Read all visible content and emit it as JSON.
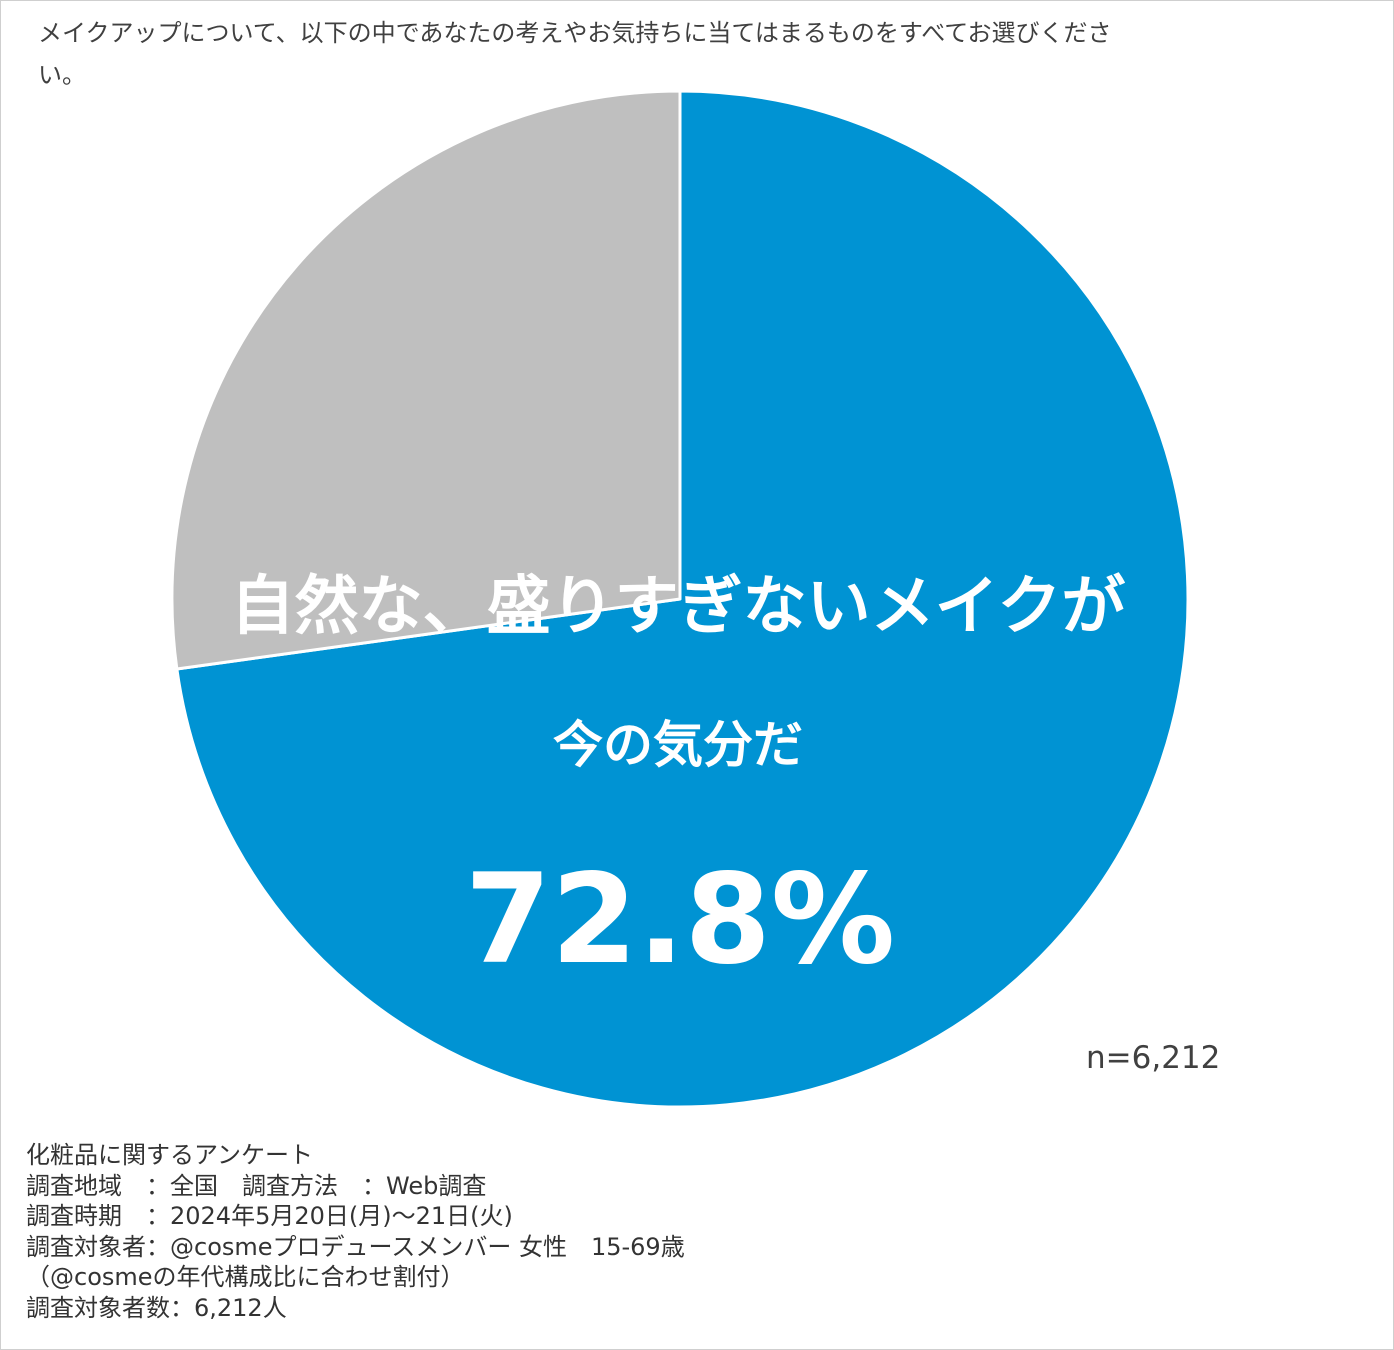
{
  "question": "メイクアップについて、以下の中であなたの考えやお気持ちに当てはまるものをすべてお選びください。",
  "colors": {
    "primary_slice": "#0093d3",
    "other_slice": "#bfbfbf",
    "label_text": "#ffffff"
  },
  "chart_data": {
    "type": "pie",
    "slices": [
      {
        "label": "自然な、盛りすぎないメイクが今の気分だ",
        "value": 72.8,
        "color": "#0093d3"
      },
      {
        "label": "",
        "value": 27.2,
        "color": "#bfbfbf"
      }
    ],
    "start_angle": "12 o'clock, clockwise",
    "annotation": {
      "line1": "自然な、盛りすぎないメイクが",
      "line2": "今の気分だ",
      "value": "72.8%"
    },
    "n_label": "n=6,212"
  },
  "footer": {
    "lines": [
      "化粧品に関するアンケート",
      "調査地域　：全国　調査方法　：Web調査",
      "調査時期　：2024年5月20日(月)～21日(火)",
      "調査対象者：@cosmeプロデュースメンバー 女性　15-69歳",
      "（@cosmeの年代構成比に合わせ割付）",
      "調査対象者数：6,212人"
    ]
  }
}
